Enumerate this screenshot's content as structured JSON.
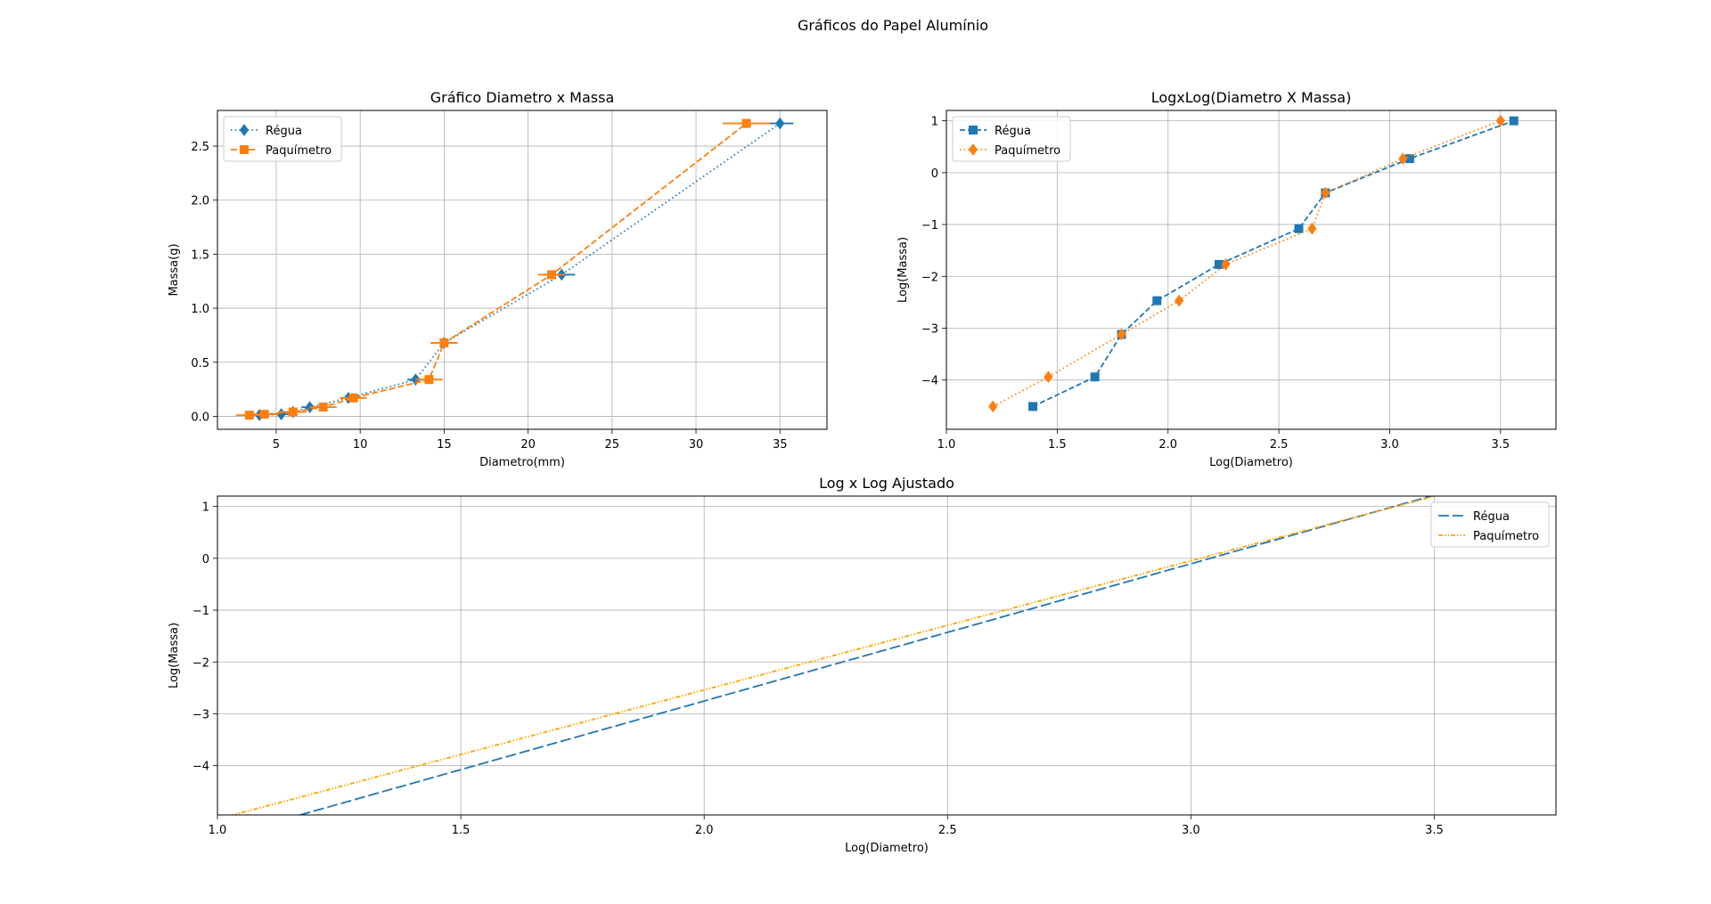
{
  "figure": {
    "suptitle": "Gráficos do Papel Alumínio"
  },
  "colors": {
    "regua": "#1f77b4",
    "paquimetro": "#ff7f0e",
    "paquimetro_fit": "#ffa500",
    "grid": "#b0b0b0"
  },
  "chart_data": [
    {
      "type": "line",
      "title": "Gráfico Diametro x Massa",
      "xlabel": "Diametro(mm)",
      "ylabel": "Massa(g)",
      "xlim": [
        1.5,
        37.8
      ],
      "ylim": [
        -0.12,
        2.83
      ],
      "xticks": [
        5,
        10,
        15,
        20,
        25,
        30,
        35
      ],
      "yticks": [
        0.0,
        0.5,
        1.0,
        1.5,
        2.0,
        2.5
      ],
      "grid": true,
      "legend": "upper-left",
      "series": [
        {
          "name": "Régua",
          "color": "#1f77b4",
          "marker": "diamond",
          "dash": "1.5,3.2",
          "points": [
            [
              4.0,
              0.011
            ],
            [
              5.3,
              0.019
            ],
            [
              6.0,
              0.04
            ],
            [
              7.0,
              0.085
            ],
            [
              9.3,
              0.17
            ],
            [
              13.3,
              0.34
            ],
            [
              15.0,
              0.68
            ],
            [
              22.0,
              1.31
            ],
            [
              35.0,
              2.71
            ]
          ],
          "xerr": [
            0.5,
            0.5,
            0.5,
            0.5,
            0.5,
            0.5,
            0.8,
            0.8,
            0.8
          ]
        },
        {
          "name": "Paquímetro",
          "color": "#ff7f0e",
          "marker": "square",
          "dash": "7,3",
          "points": [
            [
              3.4,
              0.011
            ],
            [
              4.3,
              0.019
            ],
            [
              6.0,
              0.04
            ],
            [
              7.8,
              0.085
            ],
            [
              9.6,
              0.17
            ],
            [
              14.1,
              0.34
            ],
            [
              15.0,
              0.68
            ],
            [
              21.4,
              1.31
            ],
            [
              33.0,
              2.71
            ]
          ],
          "xerr": [
            0.8,
            0.8,
            0.8,
            0.8,
            0.8,
            0.8,
            0.8,
            0.8,
            1.4
          ]
        }
      ]
    },
    {
      "type": "line",
      "title": "LogxLog(Diametro X Massa)",
      "xlabel": "Log(Diametro)",
      "ylabel": "Log(Massa)",
      "xlim": [
        1.0,
        3.75
      ],
      "ylim": [
        -4.95,
        1.2
      ],
      "xticks": [
        1.0,
        1.5,
        2.0,
        2.5,
        3.0,
        3.5
      ],
      "yticks": [
        1,
        0,
        -1,
        -2,
        -3,
        -4
      ],
      "grid": true,
      "legend": "upper-left",
      "series": [
        {
          "name": "Régua",
          "color": "#1f77b4",
          "marker": "square",
          "dash": "6,3",
          "points": [
            [
              1.39,
              -4.51
            ],
            [
              1.67,
              -3.94
            ],
            [
              1.79,
              -3.12
            ],
            [
              1.95,
              -2.47
            ],
            [
              2.23,
              -1.77
            ],
            [
              2.59,
              -1.08
            ],
            [
              2.71,
              -0.39
            ],
            [
              3.09,
              0.27
            ],
            [
              3.56,
              1.0
            ]
          ]
        },
        {
          "name": "Paquímetro",
          "color": "#ff7f0e",
          "marker": "diamond",
          "dash": "1.5,3.2",
          "points": [
            [
              1.21,
              -4.51
            ],
            [
              1.46,
              -3.94
            ],
            [
              1.79,
              -3.12
            ],
            [
              2.05,
              -2.47
            ],
            [
              2.26,
              -1.77
            ],
            [
              2.65,
              -1.08
            ],
            [
              2.71,
              -0.39
            ],
            [
              3.06,
              0.27
            ],
            [
              3.5,
              1.0
            ]
          ]
        }
      ]
    },
    {
      "type": "line",
      "title": "Log x Log Ajustado",
      "xlabel": "Log(Diametro)",
      "ylabel": "Log(Massa)",
      "xlim": [
        1.0,
        3.75
      ],
      "ylim": [
        -4.95,
        1.2
      ],
      "xticks": [
        1.0,
        1.5,
        2.0,
        2.5,
        3.0,
        3.5
      ],
      "yticks": [
        1,
        0,
        -1,
        -2,
        -3,
        -4
      ],
      "grid": true,
      "legend": "upper-right",
      "series": [
        {
          "name": "Régua",
          "color": "#1f77b4",
          "dash": "12,4",
          "points": [
            [
              1.0,
              -5.4
            ],
            [
              3.75,
              1.88
            ]
          ]
        },
        {
          "name": "Paquímetro",
          "color": "#ffa500",
          "dash": "5,2,1.5,2,1.5,2",
          "points": [
            [
              1.0,
              -5.03
            ],
            [
              3.75,
              1.82
            ]
          ]
        }
      ]
    }
  ]
}
